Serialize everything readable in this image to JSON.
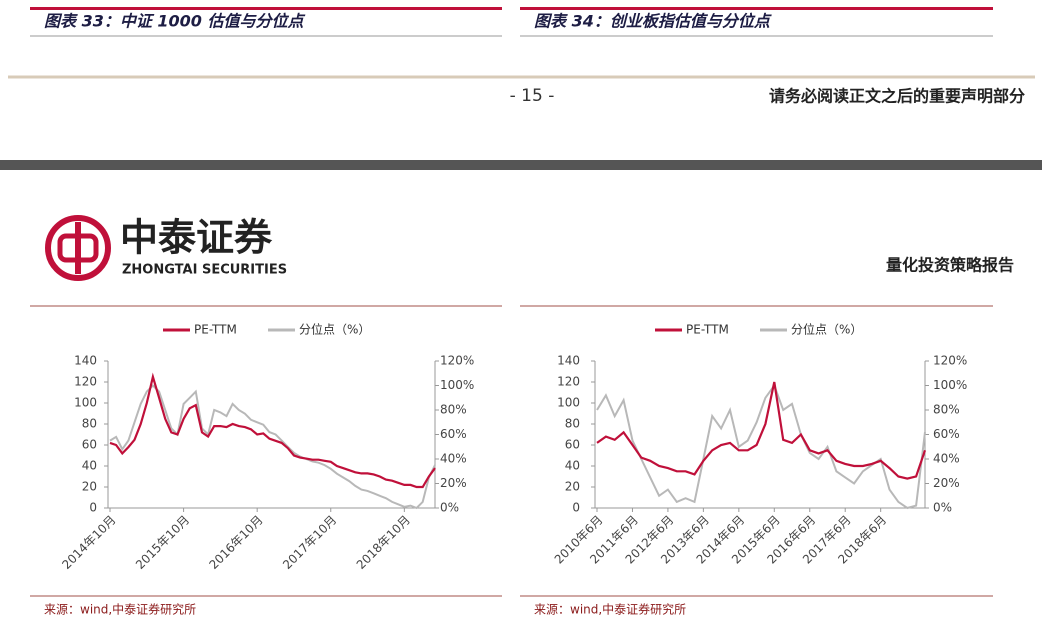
{
  "previous_page": {
    "figure_titles": [
      "图表 33：中证 1000 估值与分位点",
      "图表 34：创业板指估值与分位点"
    ],
    "page_number": "- 15 -",
    "disclaimer": "请务必阅读正文之后的重要声明部分"
  },
  "header": {
    "brand": "中泰证券",
    "brand_en": "ZHONGTAI SECURITIES",
    "report_type": "量化投资策略报告"
  },
  "chart_data": [
    {
      "type": "line",
      "categories": [
        "2014年10月",
        null,
        null,
        null,
        null,
        null,
        null,
        null,
        null,
        null,
        null,
        null,
        "2015年10月",
        null,
        null,
        null,
        null,
        null,
        null,
        null,
        null,
        null,
        null,
        null,
        "2016年10月",
        null,
        null,
        null,
        null,
        null,
        null,
        null,
        null,
        null,
        null,
        null,
        "2017年10月",
        null,
        null,
        null,
        null,
        null,
        null,
        null,
        null,
        null,
        null,
        null,
        "2018年10月",
        null,
        null,
        null,
        null,
        null
      ],
      "series": [
        {
          "name": "PE-TTM",
          "color": "#c0103a",
          "values": [
            62,
            60,
            52,
            58,
            65,
            80,
            100,
            125,
            105,
            85,
            72,
            70,
            85,
            95,
            98,
            72,
            68,
            78,
            78,
            77,
            80,
            78,
            77,
            75,
            70,
            71,
            66,
            64,
            62,
            57,
            50,
            48,
            47,
            46,
            46,
            45,
            44,
            40,
            38,
            36,
            34,
            33,
            33,
            32,
            30,
            27,
            26,
            24,
            22,
            22,
            20,
            20,
            30,
            38
          ]
        },
        {
          "name": "分位点（%）",
          "color": "#b8b8b8",
          "axis": "y2",
          "values": [
            55,
            58,
            48,
            55,
            70,
            85,
            95,
            100,
            95,
            80,
            65,
            60,
            85,
            90,
            95,
            65,
            60,
            80,
            78,
            75,
            85,
            80,
            77,
            72,
            70,
            68,
            62,
            60,
            55,
            50,
            45,
            42,
            40,
            38,
            37,
            35,
            32,
            28,
            25,
            22,
            18,
            15,
            14,
            12,
            10,
            8,
            5,
            3,
            1,
            2,
            0,
            5,
            25,
            35
          ]
        }
      ],
      "ylim": [
        0,
        140
      ],
      "yticks": [
        0,
        20,
        40,
        60,
        80,
        100,
        120,
        140
      ],
      "y2lim": [
        0,
        120
      ],
      "y2ticks": [
        {
          "value": 0,
          "label": "0%"
        },
        {
          "value": 20,
          "label": "20%"
        },
        {
          "value": 40,
          "label": "40%"
        },
        {
          "value": 60,
          "label": "60%"
        },
        {
          "value": 80,
          "label": "80%"
        },
        {
          "value": 100,
          "label": "100%"
        },
        {
          "value": 120,
          "label": "120%"
        }
      ],
      "grid": false,
      "source": "来源：wind,中泰证券研究所"
    },
    {
      "type": "line",
      "categories": [
        "2010年6月",
        null,
        null,
        null,
        "2011年6月",
        null,
        null,
        null,
        "2012年6月",
        null,
        null,
        null,
        "2013年6月",
        null,
        null,
        null,
        "2014年6月",
        null,
        null,
        null,
        "2015年6月",
        null,
        null,
        null,
        "2016年6月",
        null,
        null,
        null,
        "2017年6月",
        null,
        null,
        null,
        "2018年6月",
        null,
        null,
        null,
        null,
        null
      ],
      "series": [
        {
          "name": "PE-TTM",
          "color": "#c0103a",
          "values": [
            62,
            68,
            65,
            72,
            60,
            48,
            45,
            40,
            38,
            35,
            35,
            32,
            45,
            55,
            60,
            62,
            55,
            55,
            60,
            80,
            120,
            65,
            62,
            70,
            55,
            52,
            55,
            45,
            42,
            40,
            40,
            42,
            45,
            38,
            30,
            28,
            30,
            55
          ]
        },
        {
          "name": "分位点（%）",
          "color": "#b8b8b8",
          "axis": "y2",
          "values": [
            80,
            92,
            75,
            88,
            55,
            40,
            25,
            10,
            15,
            5,
            8,
            5,
            40,
            75,
            65,
            80,
            50,
            55,
            70,
            90,
            100,
            80,
            85,
            60,
            45,
            40,
            50,
            30,
            25,
            20,
            30,
            35,
            40,
            15,
            5,
            0,
            2,
            62
          ]
        }
      ],
      "ylim": [
        0,
        140
      ],
      "yticks": [
        0,
        20,
        40,
        60,
        80,
        100,
        120,
        140
      ],
      "y2lim": [
        0,
        120
      ],
      "y2ticks": [
        {
          "value": 0,
          "label": "0%"
        },
        {
          "value": 20,
          "label": "20%"
        },
        {
          "value": 40,
          "label": "40%"
        },
        {
          "value": 60,
          "label": "60%"
        },
        {
          "value": 80,
          "label": "80%"
        },
        {
          "value": 100,
          "label": "100%"
        },
        {
          "value": 120,
          "label": "120%"
        }
      ],
      "grid": false,
      "source": "来源：wind,中泰证券研究所"
    }
  ]
}
